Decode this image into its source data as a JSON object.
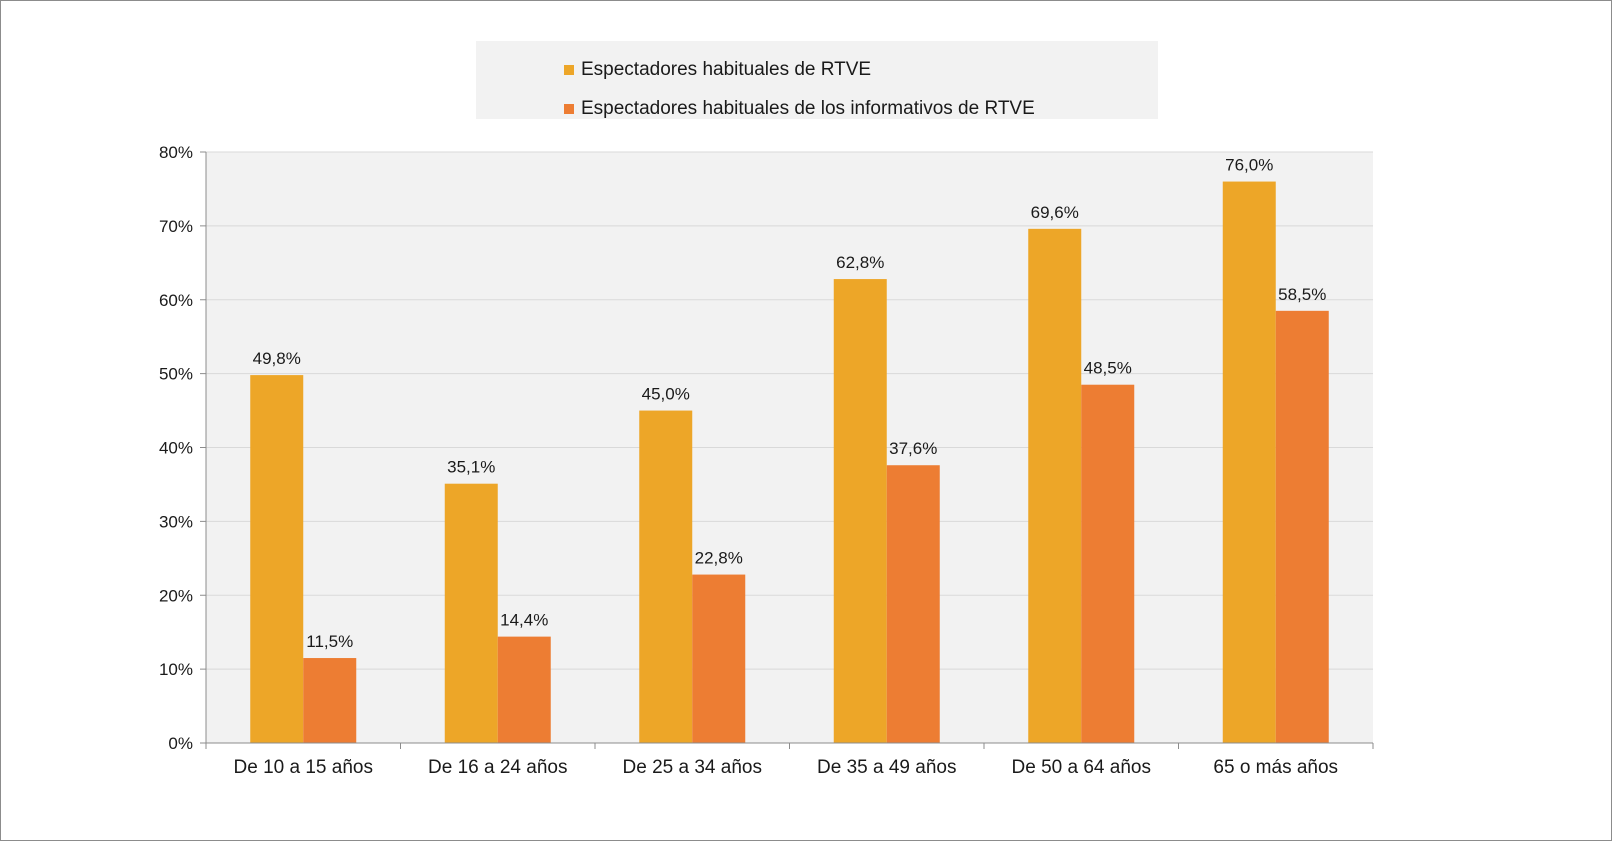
{
  "colors": {
    "series1": "#EDA628",
    "series2": "#ED7D33",
    "plot_background": "#F2F2F2",
    "gridline": "#D9D9D9",
    "axis": "#8C8C8C",
    "text": "#1A1A1A"
  },
  "chart_data": {
    "type": "bar",
    "categories": [
      "De 10 a 15 años",
      "De 16 a 24 años",
      "De 25 a 34 años",
      "De 35 a 49 años",
      "De 50 a 64 años",
      "65 o más años"
    ],
    "series": [
      {
        "name": "Espectadores habituales de RTVE",
        "values": [
          49.8,
          35.1,
          45.0,
          62.8,
          69.6,
          76.0
        ],
        "labels": [
          "49,8%",
          "35,1%",
          "45,0%",
          "62,8%",
          "69,6%",
          "76,0%"
        ]
      },
      {
        "name": "Espectadores habituales de los informativos de RTVE",
        "values": [
          11.5,
          14.4,
          22.8,
          37.6,
          48.5,
          58.5
        ],
        "labels": [
          "11,5%",
          "14,4%",
          "22,8%",
          "37,6%",
          "48,5%",
          "58,5%"
        ]
      }
    ],
    "ylim": [
      0,
      80
    ],
    "yticks": [
      0,
      10,
      20,
      30,
      40,
      50,
      60,
      70,
      80
    ],
    "ytick_labels": [
      "0%",
      "10%",
      "20%",
      "30%",
      "40%",
      "50%",
      "60%",
      "70%",
      "80%"
    ],
    "grid": true,
    "legend_position": "top",
    "title": "",
    "xlabel": "",
    "ylabel": ""
  }
}
